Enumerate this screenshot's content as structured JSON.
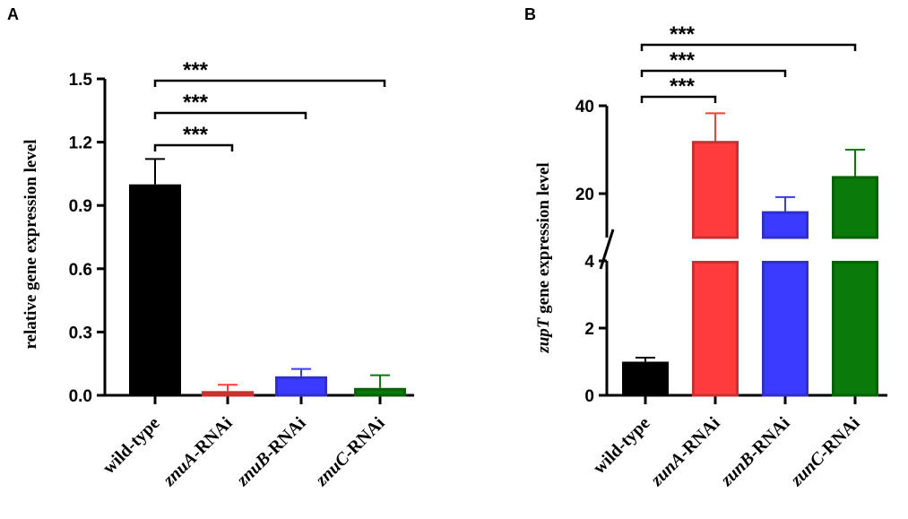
{
  "chart_data": [
    {
      "panel": "A",
      "type": "bar",
      "ylabel": "relative gene expression level",
      "ylim": [
        0,
        1.5
      ],
      "yticks": [
        "0.0",
        "0.3",
        "0.6",
        "0.9",
        "1.2",
        "1.5"
      ],
      "categories": [
        {
          "pre": "",
          "italic": "",
          "post": "wild-type"
        },
        {
          "pre": "",
          "italic": "znuA",
          "post": "-RNAi"
        },
        {
          "pre": "",
          "italic": "znuB",
          "post": "-RNAi"
        },
        {
          "pre": "",
          "italic": "znuC",
          "post": "-RNAi"
        }
      ],
      "values": [
        1.0,
        0.02,
        0.09,
        0.035
      ],
      "errors": [
        0.12,
        0.03,
        0.035,
        0.06
      ],
      "colors": [
        "#000000",
        "#ff3b3b",
        "#3b3bff",
        "#0a7a0a"
      ],
      "comparisons": [
        {
          "from": 0,
          "to": 1,
          "label": "***"
        },
        {
          "from": 0,
          "to": 2,
          "label": "***"
        },
        {
          "from": 0,
          "to": 3,
          "label": "***"
        }
      ]
    },
    {
      "panel": "B",
      "type": "bar",
      "ylabel_italic": "zupT",
      "ylabel_rest": " gene expression level",
      "broken_axis": true,
      "lower_ylim": [
        0,
        4
      ],
      "lower_yticks": [
        "0",
        "2",
        "4"
      ],
      "upper_ylim": [
        10,
        40
      ],
      "upper_yticks": [
        "20",
        "40"
      ],
      "categories": [
        {
          "pre": "",
          "italic": "",
          "post": "wild-type"
        },
        {
          "pre": "",
          "italic": "zunA",
          "post": "-RNAi"
        },
        {
          "pre": "",
          "italic": "zunB",
          "post": "-RNAi"
        },
        {
          "pre": "",
          "italic": "zunC",
          "post": "-RNAi"
        }
      ],
      "values": [
        1.0,
        32.0,
        16.0,
        24.0
      ],
      "errors": [
        0.12,
        6.3,
        3.2,
        6.0
      ],
      "colors": [
        "#000000",
        "#ff3b3b",
        "#3b3bff",
        "#0a7a0a"
      ],
      "comparisons": [
        {
          "from": 0,
          "to": 1,
          "label": "***"
        },
        {
          "from": 0,
          "to": 2,
          "label": "***"
        },
        {
          "from": 0,
          "to": 3,
          "label": "***"
        }
      ]
    }
  ]
}
